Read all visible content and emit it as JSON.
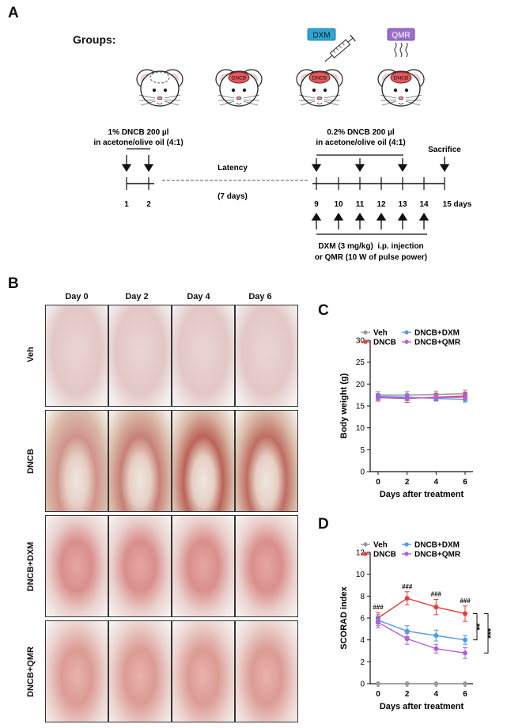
{
  "panels": {
    "a": "A",
    "b": "B",
    "c": "C",
    "d": "D"
  },
  "groups_label": "Groups:",
  "mouse_labels": [
    "DNCB",
    "DNCB",
    "DNCB"
  ],
  "badges": {
    "dxm": "DXM",
    "qmr": "QMR"
  },
  "colors": {
    "dxm_badge": "#2aa7d8",
    "qmr_badge": "#9b6fd0",
    "veh": "#999999",
    "dncb": "#e83a3a",
    "dxm": "#4a9be8",
    "qmr": "#b45de0",
    "skin": "#e9c9c6"
  },
  "timeline": {
    "first_treatment": [
      "1% DNCB 200 µl",
      "in acetone/olive oil (4:1)"
    ],
    "second_treatment": [
      "0.2% DNCB 200 µl",
      "in acetone/olive oil (4:1)"
    ],
    "sacrifice": "Sacrifice",
    "latency": "Latency",
    "latency_days": "(7 days)",
    "day_ticks": [
      "1",
      "2",
      "9",
      "10",
      "11",
      "12",
      "13",
      "14",
      "15 days"
    ],
    "injection": [
      "DXM (3 mg/kg)  i.p. injection",
      "or QMR (10 W of pulse power)"
    ]
  },
  "photos": {
    "columns": [
      "Day 0",
      "Day 2",
      "Day 4",
      "Day 6"
    ],
    "rows": [
      "Veh",
      "DNCB",
      "DNCB+DXM",
      "DNCB+QMR"
    ]
  },
  "chart_data": [
    {
      "type": "line",
      "panel": "C",
      "ylabel": "Body weight (g)",
      "xlabel": "Days after treatment",
      "x": [
        0,
        2,
        4,
        6
      ],
      "ylim": [
        0,
        30
      ],
      "yticks": [
        0,
        5,
        10,
        15,
        20,
        25,
        30
      ],
      "legend": "top",
      "series": [
        {
          "name": "Veh",
          "values": [
            17.5,
            17.5,
            17.6,
            17.8
          ],
          "err": [
            0.8,
            0.8,
            0.8,
            0.8
          ]
        },
        {
          "name": "DNCB",
          "values": [
            16.9,
            16.7,
            17.0,
            17.3
          ],
          "err": [
            0.8,
            0.9,
            0.8,
            0.8
          ]
        },
        {
          "name": "DNCB+DXM",
          "values": [
            17.2,
            17.0,
            16.7,
            16.5
          ],
          "err": [
            0.6,
            0.6,
            0.6,
            0.6
          ]
        },
        {
          "name": "DNCB+QMR",
          "values": [
            17.0,
            16.8,
            16.9,
            17.0
          ],
          "err": [
            0.6,
            0.6,
            0.6,
            0.6
          ]
        }
      ]
    },
    {
      "type": "line",
      "panel": "D",
      "ylabel": "SCORAD index",
      "xlabel": "Days after treatment",
      "x": [
        0,
        2,
        4,
        6
      ],
      "ylim": [
        0,
        12
      ],
      "yticks": [
        0,
        2,
        4,
        6,
        8,
        10,
        12
      ],
      "legend": "top",
      "series": [
        {
          "name": "Veh",
          "values": [
            0,
            0,
            0,
            0
          ],
          "err": [
            0,
            0,
            0,
            0
          ]
        },
        {
          "name": "DNCB",
          "values": [
            6.0,
            7.8,
            7.0,
            6.4
          ],
          "err": [
            0.5,
            0.6,
            0.7,
            0.7
          ]
        },
        {
          "name": "DNCB+DXM",
          "values": [
            5.8,
            4.8,
            4.4,
            4.0
          ],
          "err": [
            0.5,
            0.5,
            0.5,
            0.4
          ]
        },
        {
          "name": "DNCB+QMR",
          "values": [
            5.6,
            4.1,
            3.2,
            2.8
          ],
          "err": [
            0.5,
            0.5,
            0.4,
            0.5
          ]
        }
      ],
      "annotations": {
        "hash": "###",
        "sig_dxm": "**",
        "sig_qmr": "***"
      }
    }
  ]
}
